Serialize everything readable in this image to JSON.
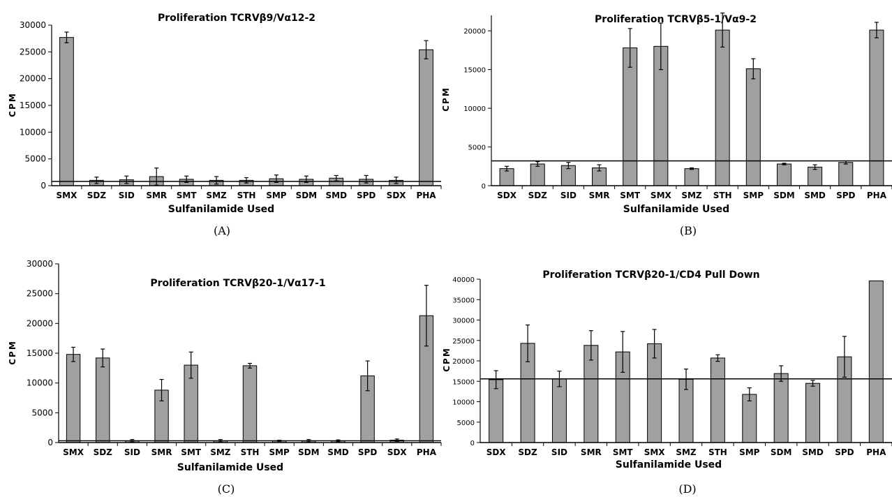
{
  "chart_data": [
    {
      "type": "bar",
      "title": "Proliferation TCRVβ9/Vα12-2",
      "xlabel": "Sulfanilamide Used",
      "ylabel": "CPM",
      "caption": "(A)",
      "ylim": [
        0,
        30000
      ],
      "yticks": [
        0,
        5000,
        10000,
        15000,
        20000,
        25000,
        30000
      ],
      "ytick_labels": [
        "0",
        "5000",
        "10000",
        "15000",
        "20000",
        "25000",
        "30000"
      ],
      "categories": [
        "SMX",
        "SDZ",
        "SID",
        "SMR",
        "SMT",
        "SMZ",
        "STH",
        "SMP",
        "SDM",
        "SMD",
        "SPD",
        "SDX",
        "PHA"
      ],
      "values": [
        27700,
        1000,
        1100,
        1700,
        1200,
        1000,
        1000,
        1300,
        1200,
        1400,
        1200,
        1000,
        25400
      ],
      "errors": [
        1000,
        600,
        700,
        1600,
        600,
        700,
        500,
        700,
        600,
        500,
        700,
        600,
        1700
      ],
      "reference_line": 800,
      "bar_color": "#a0a0a0"
    },
    {
      "type": "bar",
      "title": "Proliferation TCRVβ5-1/Vα9-2",
      "xlabel": "Sulfanilamide Used",
      "ylabel": "CPM",
      "caption": "(B)",
      "ylim": [
        0,
        22000
      ],
      "yticks": [
        0,
        5000,
        10000,
        15000,
        20000
      ],
      "ytick_labels": [
        "0",
        "5000",
        "10000",
        "15000",
        "20000"
      ],
      "categories": [
        "SDX",
        "SDZ",
        "SID",
        "SMR",
        "SMT",
        "SMX",
        "SMZ",
        "STH",
        "SMP",
        "SDM",
        "SMD",
        "SPD",
        "PHA"
      ],
      "values": [
        2200,
        2800,
        2600,
        2300,
        17800,
        18000,
        2200,
        20100,
        15100,
        2800,
        2400,
        3000,
        20100
      ],
      "errors": [
        300,
        300,
        400,
        400,
        2500,
        3000,
        100,
        2200,
        1300,
        100,
        300,
        200,
        1000
      ],
      "reference_line": 3200,
      "bar_color": "#a0a0a0"
    },
    {
      "type": "bar",
      "title": "Proliferation TCRVβ20-1/Vα17-1",
      "xlabel": "Sulfanilamide Used",
      "ylabel": "CPM",
      "caption": "(C)",
      "ylim": [
        0,
        30000
      ],
      "yticks": [
        0,
        5000,
        10000,
        15000,
        20000,
        25000,
        30000
      ],
      "ytick_labels": [
        "0",
        "5000",
        "10000",
        "15000",
        "20000",
        "25000",
        "30000"
      ],
      "categories": [
        "SMX",
        "SDZ",
        "SID",
        "SMR",
        "SMT",
        "SMZ",
        "STH",
        "SMP",
        "SDM",
        "SMD",
        "SPD",
        "SDX",
        "PHA"
      ],
      "values": [
        14800,
        14200,
        300,
        8800,
        13000,
        300,
        12900,
        300,
        300,
        300,
        11200,
        400,
        21300
      ],
      "errors": [
        1200,
        1500,
        200,
        1800,
        2200,
        200,
        400,
        100,
        200,
        150,
        2500,
        200,
        5100
      ],
      "reference_line": 300,
      "bar_color": "#a0a0a0"
    },
    {
      "type": "bar",
      "title": "Proliferation TCRVβ20-1/CD4 Pull Down",
      "xlabel": "Sulfanilamide Used",
      "ylabel": "CPM",
      "caption": "(D)",
      "ylim": [
        0,
        40000
      ],
      "yticks": [
        0,
        5000,
        10000,
        15000,
        20000,
        25000,
        30000,
        35000,
        40000
      ],
      "ytick_labels": [
        "0",
        "5000",
        "10000",
        "15000",
        "20000",
        "25000",
        "30000",
        "35000",
        "40000"
      ],
      "categories": [
        "SDX",
        "SDZ",
        "SID",
        "SMR",
        "SMT",
        "SMX",
        "SMZ",
        "STH",
        "SMP",
        "SDM",
        "SMD",
        "SPD",
        "PHA"
      ],
      "values": [
        15400,
        24300,
        15600,
        23800,
        22200,
        24200,
        15500,
        20700,
        11800,
        16900,
        14500,
        21000,
        39600
      ],
      "errors": [
        2200,
        4500,
        1900,
        3600,
        5000,
        3500,
        2500,
        800,
        1600,
        1900,
        700,
        5000,
        0
      ],
      "reference_line": 15600,
      "bar_color": "#a0a0a0"
    }
  ]
}
